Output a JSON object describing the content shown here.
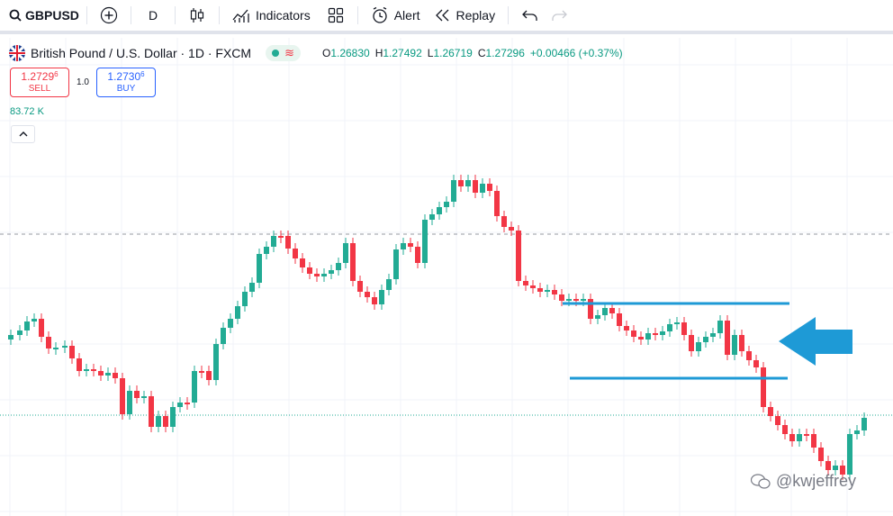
{
  "toolbar": {
    "symbol": "GBPUSD",
    "interval": "D",
    "indicators_label": "Indicators",
    "alert_label": "Alert",
    "replay_label": "Replay",
    "icons": [
      "search-icon",
      "add-symbol-icon",
      "candles-icon",
      "indicators-icon",
      "layouts-icon",
      "alert-icon",
      "replay-icon",
      "undo-icon",
      "redo-icon"
    ]
  },
  "legend": {
    "title": "British Pound / U.S. Dollar · 1D · FXCM",
    "open_label": "O",
    "open": "1.26830",
    "high_label": "H",
    "high": "1.27492",
    "low_label": "L",
    "low": "1.26719",
    "close_label": "C",
    "close": "1.27296",
    "change": "+0.00466 (+0.37%)"
  },
  "trade": {
    "sell_price": "1.2729",
    "sell_price_small": "6",
    "sell_label": "SELL",
    "spread": "1.0",
    "buy_price": "1.2730",
    "buy_price_small": "6",
    "buy_label": "BUY"
  },
  "volume": "83.72 K",
  "watermark": "@kwjeffrey",
  "colors": {
    "up": "#22ab94",
    "down": "#f23645",
    "annotation": "#1e9ad6"
  }
}
